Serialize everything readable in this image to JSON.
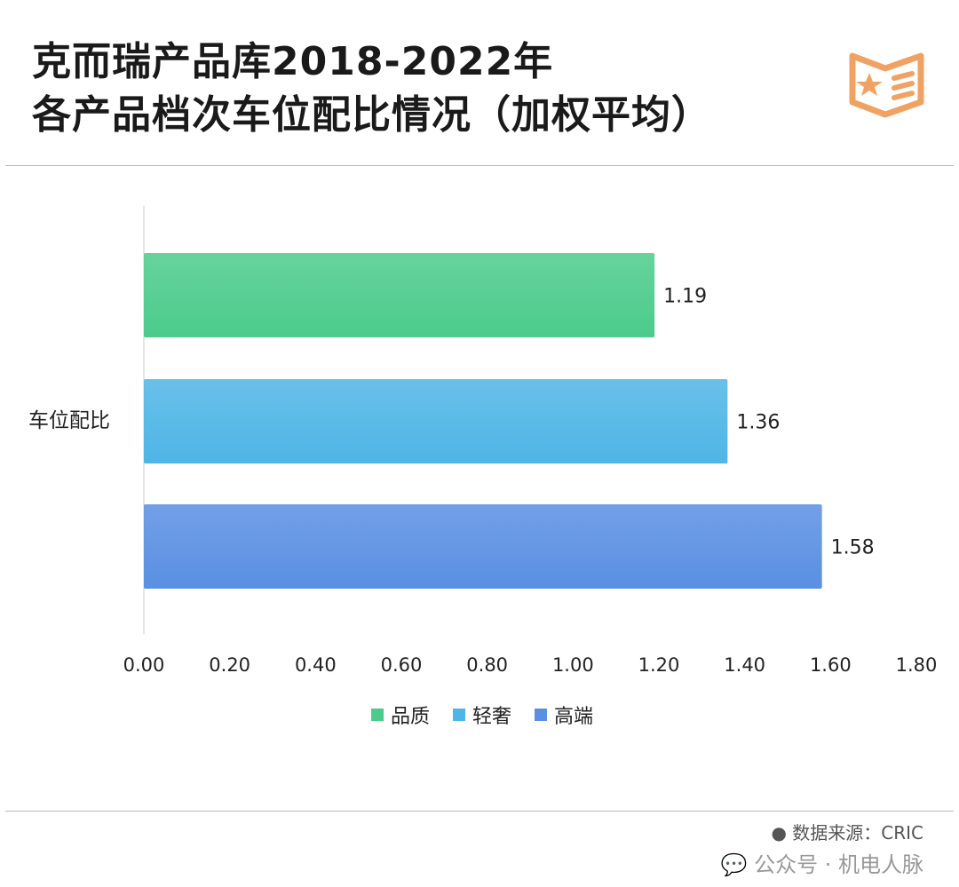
{
  "header": {
    "title_line1": "克而瑞产品库2018-2022年",
    "title_line2": "各产品档次车位配比情况（加权平均）",
    "icon": "book-star-icon",
    "icon_color": "#f0a264"
  },
  "footer": {
    "source": "● 数据来源：CRIC",
    "watermark": "公众号 · 机电人脉",
    "watermark_icon": "wechat-icon"
  },
  "chart_data": {
    "type": "bar",
    "orientation": "horizontal",
    "categories": [
      "车位配比"
    ],
    "series": [
      {
        "name": "品质",
        "values": [
          1.19
        ],
        "color": "#4ccb8c"
      },
      {
        "name": "轻奢",
        "values": [
          1.36
        ],
        "color": "#4fb5e6"
      },
      {
        "name": "高端",
        "values": [
          1.58
        ],
        "color": "#5a8fe2"
      }
    ],
    "xlim": [
      0,
      1.8
    ],
    "xticks": [
      "0.00",
      "0.20",
      "0.40",
      "0.60",
      "0.80",
      "1.00",
      "1.20",
      "1.40",
      "1.60",
      "1.80"
    ],
    "data_labels": [
      "1.19",
      "1.36",
      "1.58"
    ],
    "legend": "bottom",
    "grid": false
  }
}
